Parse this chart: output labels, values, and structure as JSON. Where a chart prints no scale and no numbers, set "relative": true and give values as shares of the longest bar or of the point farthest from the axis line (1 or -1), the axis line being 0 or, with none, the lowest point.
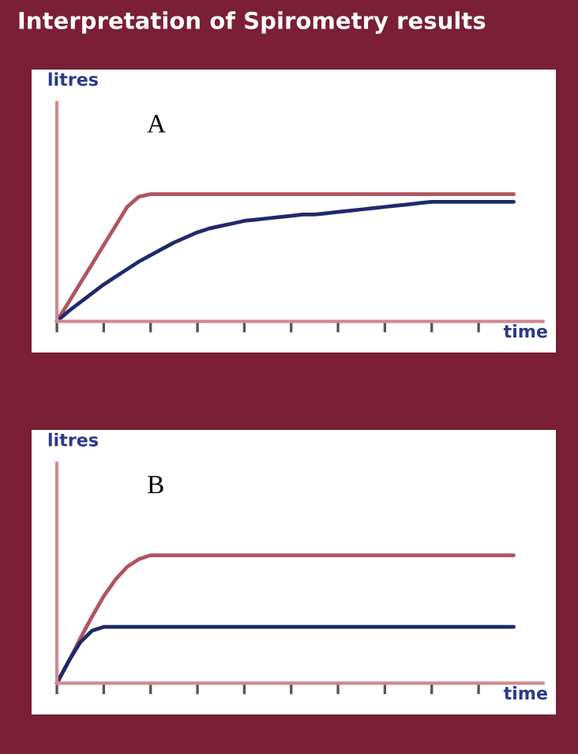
{
  "chart_data": [
    {
      "type": "line",
      "title": "Interpretation of Spirometry results",
      "xlabel": "time",
      "ylabel": "litres",
      "relative": true,
      "annotations": [
        "A"
      ],
      "categories": [
        null,
        null,
        null,
        null,
        null,
        null,
        null,
        null,
        null,
        null,
        null,
        null,
        null,
        null,
        null,
        null,
        null,
        null,
        null,
        null,
        null,
        null,
        null,
        null,
        null,
        null,
        null,
        null,
        null,
        null,
        null,
        null,
        null,
        null,
        null,
        null,
        null,
        null,
        null,
        null
      ],
      "series": [
        {
          "color": "#b05560",
          "values": [
            0,
            0.15,
            0.3,
            0.45,
            0.6,
            0.75,
            0.9,
            0.98,
            1,
            1,
            1,
            1,
            1,
            1,
            1,
            1,
            1,
            1,
            1,
            1,
            1,
            1,
            1,
            1,
            1,
            1,
            1,
            1,
            1,
            1,
            1,
            1,
            1,
            1,
            1,
            1,
            1,
            1,
            1,
            1
          ]
        },
        {
          "color": "#1f2a6b",
          "values": [
            0,
            0.08,
            0.15,
            0.22,
            0.29,
            0.35,
            0.41,
            0.47,
            0.52,
            0.57,
            0.62,
            0.66,
            0.7,
            0.73,
            0.75,
            0.77,
            0.79,
            0.8,
            0.81,
            0.82,
            0.83,
            0.84,
            0.84,
            0.85,
            0.86,
            0.87,
            0.88,
            0.89,
            0.9,
            0.91,
            0.92,
            0.93,
            0.94,
            0.94,
            0.94,
            0.94,
            0.94,
            0.94,
            0.94,
            0.94
          ]
        }
      ]
    },
    {
      "type": "line",
      "xlabel": "time",
      "ylabel": "litres",
      "relative": true,
      "annotations": [
        "B"
      ],
      "categories": [
        null,
        null,
        null,
        null,
        null,
        null,
        null,
        null,
        null,
        null,
        null,
        null,
        null,
        null,
        null,
        null,
        null,
        null,
        null,
        null,
        null,
        null,
        null,
        null,
        null,
        null,
        null,
        null,
        null,
        null,
        null,
        null,
        null,
        null,
        null,
        null,
        null,
        null,
        null,
        null
      ],
      "series": [
        {
          "color": "#b05560",
          "values": [
            0,
            0.17,
            0.35,
            0.52,
            0.68,
            0.81,
            0.91,
            0.97,
            1,
            1,
            1,
            1,
            1,
            1,
            1,
            1,
            1,
            1,
            1,
            1,
            1,
            1,
            1,
            1,
            1,
            1,
            1,
            1,
            1,
            1,
            1,
            1,
            1,
            1,
            1,
            1,
            1,
            1,
            1,
            1
          ]
        },
        {
          "color": "#1f2a6b",
          "values": [
            0,
            0.17,
            0.32,
            0.41,
            0.44,
            0.44,
            0.44,
            0.44,
            0.44,
            0.44,
            0.44,
            0.44,
            0.44,
            0.44,
            0.44,
            0.44,
            0.44,
            0.44,
            0.44,
            0.44,
            0.44,
            0.44,
            0.44,
            0.44,
            0.44,
            0.44,
            0.44,
            0.44,
            0.44,
            0.44,
            0.44,
            0.44,
            0.44,
            0.44,
            0.44,
            0.44,
            0.44,
            0.44,
            0.44,
            0.44
          ]
        }
      ]
    }
  ]
}
